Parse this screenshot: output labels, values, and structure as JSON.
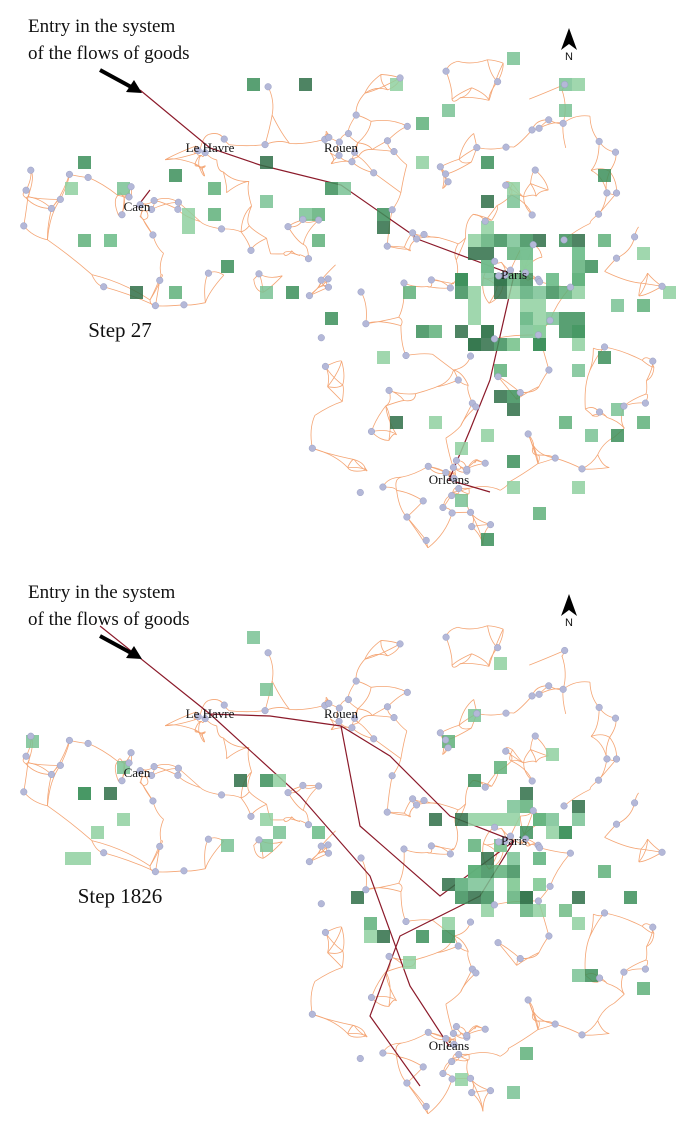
{
  "panels": [
    {
      "annotation": [
        "Entry in the system",
        "of the flows of goods"
      ],
      "north": "N",
      "cities": [
        "Le Havre",
        "Rouen",
        "Caen",
        "Paris",
        "Orléans"
      ],
      "step": "Step 27"
    },
    {
      "annotation": [
        "Entry in the system",
        "of the flows of goods"
      ],
      "north": "N",
      "cities": [
        "Le Havre",
        "Rouen",
        "Caen",
        "Paris",
        "Orléans"
      ],
      "step": "Step 1826"
    }
  ]
}
